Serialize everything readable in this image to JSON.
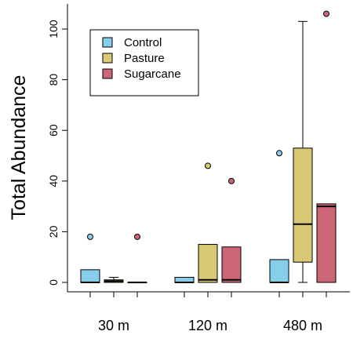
{
  "chart_data": {
    "type": "boxplot",
    "title": "",
    "xlabel": "",
    "ylabel": "Total Abundance",
    "ylim": [
      -3,
      110
    ],
    "yticks": [
      0,
      20,
      40,
      60,
      80,
      100
    ],
    "legend": {
      "position": "top-left"
    },
    "categories": [
      "30 m",
      "120 m",
      "480 m"
    ],
    "series": [
      {
        "name": "Control",
        "color": "#87CEEB",
        "boxes": [
          {
            "min": 0,
            "q1": 0,
            "median": 0,
            "q3": 5,
            "max": 5,
            "outliers": [
              18
            ]
          },
          {
            "min": 0,
            "q1": 0,
            "median": 0,
            "q3": 2,
            "max": 2,
            "outliers": []
          },
          {
            "min": 0,
            "q1": 0,
            "median": 0,
            "q3": 9,
            "max": 9,
            "outliers": [
              51
            ]
          }
        ]
      },
      {
        "name": "Pasture",
        "color": "#D9C874",
        "boxes": [
          {
            "min": 0,
            "q1": 0,
            "median": 0.5,
            "q3": 1,
            "max": 2,
            "outliers": []
          },
          {
            "min": 0,
            "q1": 0,
            "median": 1,
            "q3": 15,
            "max": 15,
            "outliers": [
              46
            ]
          },
          {
            "min": 0,
            "q1": 8,
            "median": 23,
            "q3": 53,
            "max": 103,
            "outliers": []
          }
        ]
      },
      {
        "name": "Sugarcane",
        "color": "#CC6677",
        "boxes": [
          {
            "min": 0,
            "q1": 0,
            "median": 0,
            "q3": 0,
            "max": 0,
            "outliers": [
              18
            ]
          },
          {
            "min": 0,
            "q1": 0,
            "median": 1,
            "q3": 14,
            "max": 14,
            "outliers": [
              40
            ]
          },
          {
            "min": 0,
            "q1": 0,
            "median": 30,
            "q3": 31,
            "max": 31,
            "outliers": [
              106
            ]
          }
        ]
      }
    ]
  }
}
